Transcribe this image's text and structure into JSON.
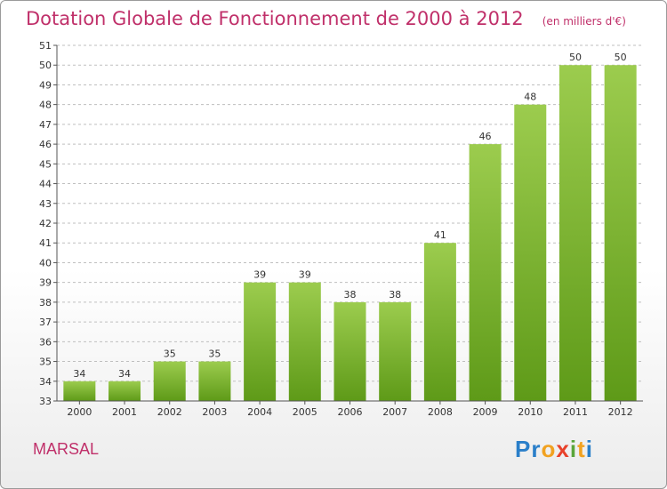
{
  "title": "Dotation Globale de Fonctionnement de 2000 à 2012",
  "subtitle": "(en milliers d'€)",
  "commune": "MARSAL",
  "logo": {
    "text": "Proxiti",
    "colors": [
      "#2a7fc9",
      "#e8412a",
      "#f1a221",
      "#5aa53a"
    ]
  },
  "colors": {
    "bar_top": "#9ccc4e",
    "bar_bottom": "#5e9a18",
    "title": "#c0306a",
    "grid": "#bfbfbf"
  },
  "chart_data": {
    "type": "bar",
    "categories": [
      "2000",
      "2001",
      "2002",
      "2003",
      "2004",
      "2005",
      "2006",
      "2007",
      "2008",
      "2009",
      "2010",
      "2011",
      "2012"
    ],
    "values": [
      34,
      34,
      35,
      35,
      39,
      39,
      38,
      38,
      41,
      46,
      48,
      50,
      50
    ],
    "ylim": [
      33,
      51
    ],
    "yticks": [
      33,
      34,
      35,
      36,
      37,
      38,
      39,
      40,
      41,
      42,
      43,
      44,
      45,
      46,
      47,
      48,
      49,
      50,
      51
    ],
    "grid": true,
    "grid_style": "dashed",
    "legend": "none",
    "data_labels": true
  }
}
